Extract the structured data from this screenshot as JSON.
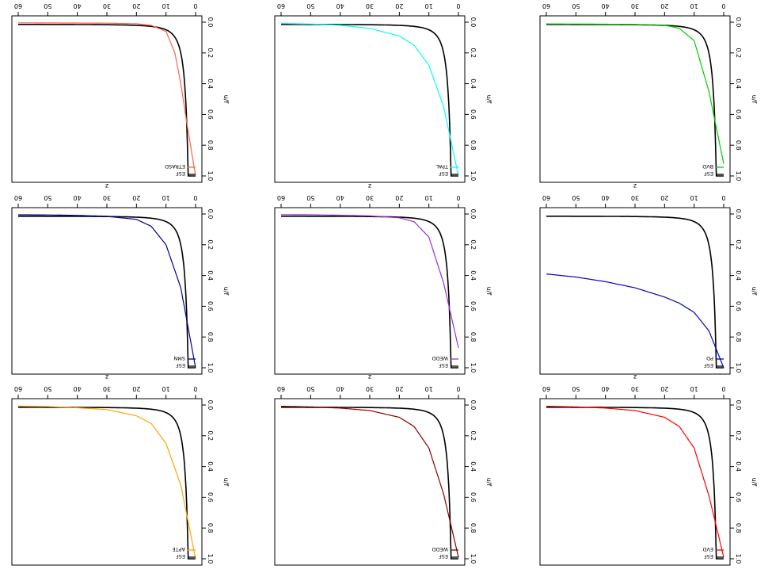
{
  "figure": {
    "rotation": "rotated 180 degrees (upside down)",
    "layout": "3x3 grid of line plots",
    "axis_text": {
      "xlabel": "z",
      "ylabel": "u/f",
      "xticks": [
        "0",
        "10",
        "20",
        "30",
        "40",
        "50",
        "60"
      ],
      "yticks": [
        "0.0",
        "0.2",
        "0.4",
        "0.6",
        "0.8",
        "1.0"
      ]
    },
    "reference_color": "#000000"
  },
  "chart_data": [
    {
      "type": "line",
      "xlabel": "z",
      "ylabel": "u/f",
      "xlim": [
        0,
        60
      ],
      "ylim": [
        0,
        1
      ],
      "grid": false,
      "legend": "top-left",
      "series": [
        {
          "name": "ESF",
          "color": "#000000",
          "family": "esf"
        },
        {
          "name": "EVD",
          "color": "#ff0000",
          "family": "power",
          "x": [
            0,
            5,
            10,
            15,
            20,
            30,
            40,
            50,
            60
          ],
          "y": [
            0.99,
            0.59,
            0.28,
            0.14,
            0.08,
            0.036,
            0.02,
            0.012,
            0.008
          ]
        }
      ]
    },
    {
      "type": "line",
      "xlabel": "z",
      "ylabel": "u/f",
      "xlim": [
        0,
        60
      ],
      "ylim": [
        0,
        1
      ],
      "grid": false,
      "legend": "top-left",
      "series": [
        {
          "name": "ESF",
          "color": "#000000",
          "family": "esf"
        },
        {
          "name": "WEDD",
          "color": "#8b0000",
          "family": "power",
          "x": [
            0,
            5,
            10,
            15,
            20,
            30,
            40,
            50,
            60
          ],
          "y": [
            0.99,
            0.58,
            0.28,
            0.14,
            0.08,
            0.036,
            0.02,
            0.012,
            0.008
          ]
        }
      ]
    },
    {
      "type": "line",
      "xlabel": "z",
      "ylabel": "u/f",
      "xlim": [
        0,
        60
      ],
      "ylim": [
        0,
        1
      ],
      "grid": false,
      "legend": "top-left",
      "series": [
        {
          "name": "ESF",
          "color": "#000000",
          "family": "esf"
        },
        {
          "name": "APTE",
          "color": "#ffa500",
          "family": "power",
          "x": [
            0,
            5,
            10,
            15,
            20,
            30,
            40,
            50,
            60
          ],
          "y": [
            1.0,
            0.52,
            0.25,
            0.12,
            0.07,
            0.03,
            0.018,
            0.01,
            0.007
          ]
        }
      ]
    },
    {
      "type": "line",
      "xlabel": "z",
      "ylabel": "u/f",
      "xlim": [
        0,
        60
      ],
      "ylim": [
        0,
        1
      ],
      "grid": false,
      "legend": "top-left",
      "series": [
        {
          "name": "ESF",
          "color": "#000000",
          "family": "esf"
        },
        {
          "name": "PD",
          "color": "#0000cc",
          "family": "power",
          "x": [
            0,
            5,
            10,
            15,
            20,
            30,
            40,
            50,
            60
          ],
          "y": [
            1.0,
            0.76,
            0.64,
            0.58,
            0.54,
            0.48,
            0.44,
            0.41,
            0.39
          ]
        }
      ]
    },
    {
      "type": "line",
      "xlabel": "z",
      "ylabel": "u/f",
      "xlim": [
        0,
        60
      ],
      "ylim": [
        0,
        1
      ],
      "grid": false,
      "legend": "top-left",
      "series": [
        {
          "name": "ESF",
          "color": "#000000",
          "family": "esf"
        },
        {
          "name": "WEDD",
          "color": "#9932cc",
          "family": "power",
          "x": [
            0,
            5,
            10,
            15,
            20,
            30,
            40,
            50,
            60
          ],
          "y": [
            0.87,
            0.45,
            0.15,
            0.05,
            0.025,
            0.012,
            0.008,
            0.005,
            0.004
          ]
        }
      ]
    },
    {
      "type": "line",
      "xlabel": "z",
      "ylabel": "u/f",
      "xlim": [
        0,
        60
      ],
      "ylim": [
        0,
        1
      ],
      "grid": false,
      "legend": "top-left",
      "series": [
        {
          "name": "ESF",
          "color": "#000000",
          "family": "esf"
        },
        {
          "name": "SMN",
          "color": "#00008b",
          "family": "power",
          "x": [
            0,
            5,
            10,
            15,
            20,
            30,
            40,
            50,
            60
          ],
          "y": [
            1.0,
            0.48,
            0.2,
            0.08,
            0.035,
            0.015,
            0.009,
            0.006,
            0.005
          ]
        }
      ]
    },
    {
      "type": "line",
      "xlabel": "z",
      "ylabel": "u/f",
      "xlim": [
        0,
        60
      ],
      "ylim": [
        0,
        1
      ],
      "grid": false,
      "legend": "top-left",
      "series": [
        {
          "name": "ESF",
          "color": "#000000",
          "family": "esf"
        },
        {
          "name": "BVD",
          "color": "#00cc00",
          "family": "power",
          "x": [
            0,
            5,
            10,
            15,
            20,
            30,
            40,
            50,
            60
          ],
          "y": [
            0.92,
            0.45,
            0.12,
            0.04,
            0.02,
            0.015,
            0.013,
            0.012,
            0.011
          ]
        }
      ]
    },
    {
      "type": "line",
      "xlabel": "z",
      "ylabel": "u/f",
      "xlim": [
        0,
        60
      ],
      "ylim": [
        0,
        1
      ],
      "grid": false,
      "legend": "top-left",
      "series": [
        {
          "name": "ESF",
          "color": "#000000",
          "family": "esf"
        },
        {
          "name": "TPAL",
          "color": "#00ffff",
          "family": "power",
          "x": [
            0,
            5,
            10,
            15,
            20,
            30,
            40,
            50,
            60
          ],
          "y": [
            1.0,
            0.55,
            0.28,
            0.15,
            0.09,
            0.04,
            0.02,
            0.012,
            0.008
          ]
        }
      ]
    },
    {
      "type": "line",
      "xlabel": "z",
      "ylabel": "u/f",
      "xlim": [
        0,
        60
      ],
      "ylim": [
        0,
        1
      ],
      "grid": false,
      "legend": "top-left",
      "series": [
        {
          "name": "ESF",
          "color": "#000000",
          "family": "esf"
        },
        {
          "name": "ETRASD",
          "color": "#ff6347",
          "family": "power",
          "x": [
            0,
            3,
            5,
            7,
            10,
            15,
            20,
            30,
            60
          ],
          "y": [
            1.0,
            0.65,
            0.4,
            0.2,
            0.06,
            0.02,
            0.01,
            0.006,
            0.004
          ]
        }
      ]
    }
  ]
}
